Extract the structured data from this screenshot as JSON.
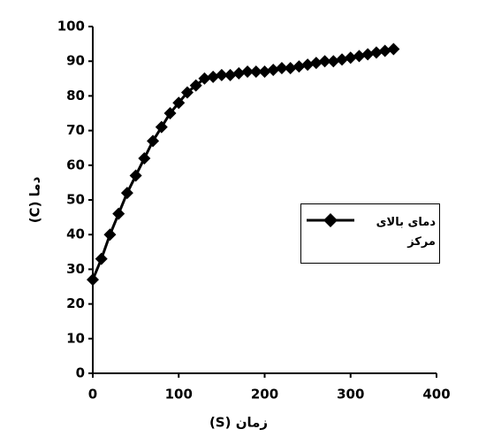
{
  "chart_data": {
    "type": "line",
    "x_label": "(S) زمان",
    "y_label": "(C) دما",
    "x": [
      0,
      10,
      20,
      30,
      40,
      50,
      60,
      70,
      80,
      90,
      100,
      110,
      120,
      130,
      140,
      150,
      160,
      170,
      180,
      190,
      200,
      210,
      220,
      230,
      240,
      250,
      260,
      270,
      280,
      290,
      300,
      310,
      320,
      330,
      340,
      350
    ],
    "series": [
      {
        "name": "دمای بالای مرکز",
        "color": "#000000",
        "marker": "diamond",
        "values": [
          27,
          33,
          40,
          46,
          52,
          57,
          62,
          67,
          71,
          75,
          78,
          81,
          83,
          85,
          85.5,
          86,
          86,
          86.5,
          87,
          87,
          87,
          87.5,
          88,
          88,
          88.5,
          89,
          89.5,
          90,
          90,
          90.5,
          91,
          91.5,
          92,
          92.5,
          93,
          93.5
        ]
      }
    ],
    "xlim": [
      0,
      400
    ],
    "xticks": [
      0,
      100,
      200,
      300,
      400
    ],
    "ylim": [
      0,
      100
    ],
    "yticks": [
      0,
      10,
      20,
      30,
      40,
      50,
      60,
      70,
      80,
      90,
      100
    ],
    "grid": false,
    "legend": "right"
  }
}
